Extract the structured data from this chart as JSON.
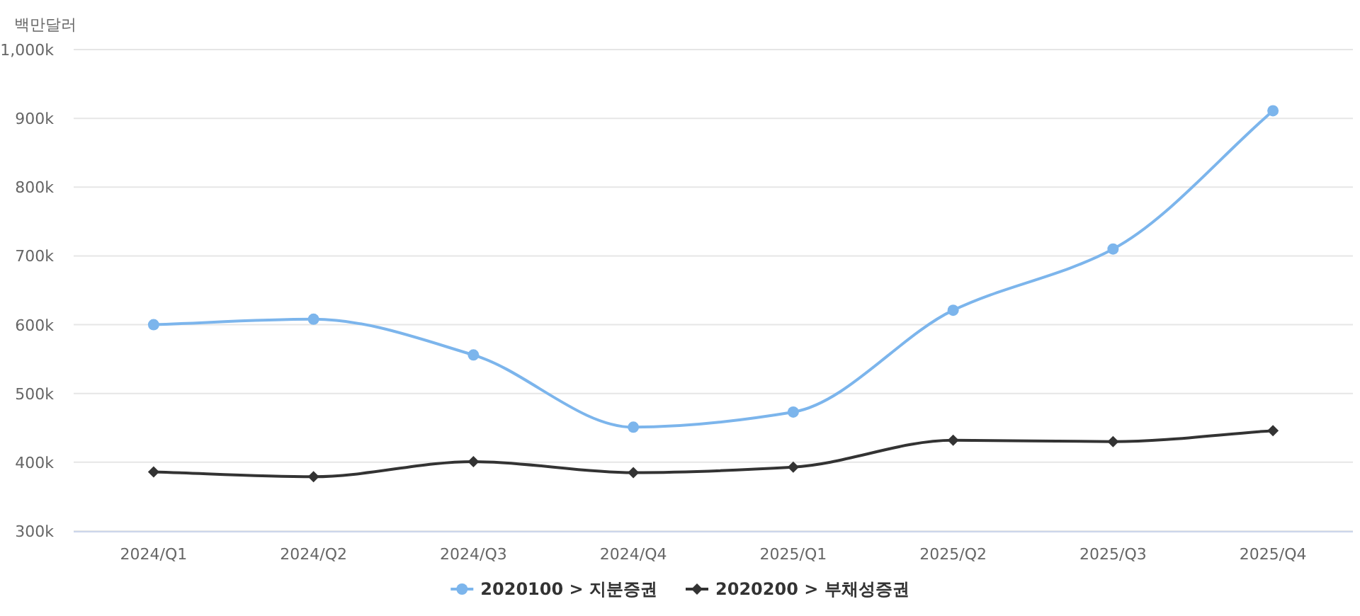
{
  "chart_data": {
    "type": "line",
    "ylabel": "백만달러",
    "categories": [
      "2024/Q1",
      "2024/Q2",
      "2024/Q3",
      "2024/Q4",
      "2025/Q1",
      "2025/Q2",
      "2025/Q3",
      "2025/Q4"
    ],
    "series": [
      {
        "name": "2020100 > 지분증권",
        "color": "#7cb5ec",
        "marker": "circle",
        "values": [
          600000,
          608000,
          556000,
          451000,
          473000,
          621000,
          710000,
          911000
        ]
      },
      {
        "name": "2020200 > 부채성증권",
        "color": "#333333",
        "marker": "diamond",
        "values": [
          386000,
          379000,
          401000,
          385000,
          393000,
          432000,
          430000,
          446000
        ]
      }
    ],
    "ylim": [
      300000,
      1000000
    ],
    "yticks": [
      {
        "value": 300000,
        "label": "300k"
      },
      {
        "value": 400000,
        "label": "400k"
      },
      {
        "value": 500000,
        "label": "500k"
      },
      {
        "value": 600000,
        "label": "600k"
      },
      {
        "value": 700000,
        "label": "700k"
      },
      {
        "value": 800000,
        "label": "800k"
      },
      {
        "value": 900000,
        "label": "900k"
      },
      {
        "value": 1000000,
        "label": "1,000k"
      }
    ],
    "grid": "y",
    "legend": "bottom"
  }
}
